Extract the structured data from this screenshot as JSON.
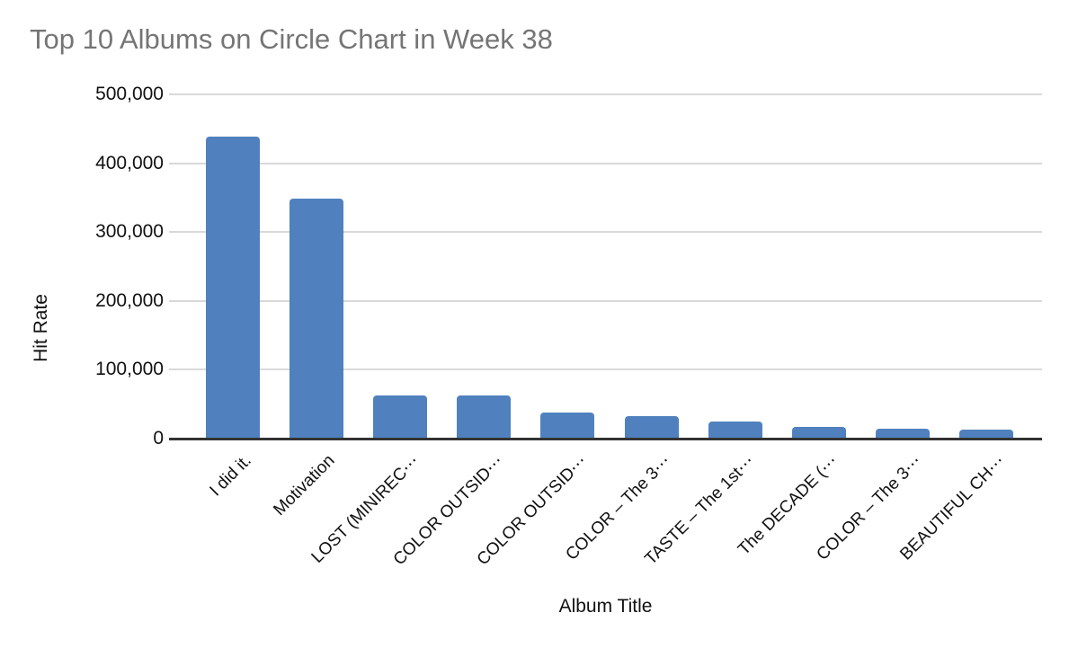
{
  "title": "Top 10 Albums on Circle Chart in Week 38",
  "colors": {
    "background": "#FFFFFF",
    "bar": "#5081BE",
    "title_text": "#757575",
    "tick_text": "#111111",
    "gridline": "#D9D9D9",
    "axis_line": "#333333"
  },
  "chart_data": {
    "type": "bar",
    "title": "Top 10 Albums on Circle Chart in Week 38",
    "xlabel": "Album Title",
    "ylabel": "Hit Rate",
    "categories": [
      "I did it.",
      "Motivation",
      "LOST (MINIREC⋯",
      "COLOR OUTSID⋯",
      "COLOR OUTSID⋯",
      "COLOR – The 3⋯",
      "TASTE – The 1st⋯",
      "The DECADE (⋯",
      "COLOR – The 3⋯",
      "BEAUTIFUL CH⋯"
    ],
    "values": [
      438000,
      348000,
      63000,
      63000,
      38000,
      33000,
      25000,
      17000,
      14000,
      13000
    ],
    "ylim": [
      0,
      500000
    ],
    "yticks": [
      0,
      100000,
      200000,
      300000,
      400000,
      500000
    ],
    "ytick_labels": [
      "0",
      "100,000",
      "200,000",
      "300,000",
      "400,000",
      "500,000"
    ],
    "grid": "horizontal",
    "legend": "none",
    "bar_color": "#5081BE",
    "x_tick_rotation_deg": 45
  }
}
